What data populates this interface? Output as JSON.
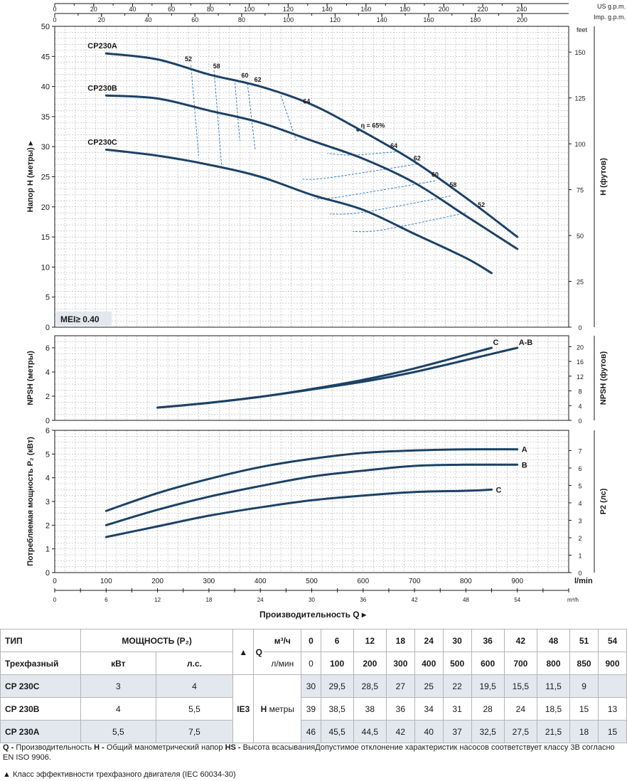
{
  "top_axes": {
    "us_gpm": {
      "label": "US g.p.m.",
      "ticks": [
        0,
        20,
        40,
        60,
        80,
        100,
        120,
        140,
        160,
        180,
        200,
        220,
        240
      ]
    },
    "imp_gpm": {
      "label": "Imp. g.p.m.",
      "ticks": [
        0,
        20,
        40,
        60,
        80,
        100,
        120,
        140,
        160,
        180,
        200
      ]
    }
  },
  "chart_data": [
    {
      "type": "line",
      "name": "head",
      "ylabel": "Напор H (метры) ▸",
      "y2label": "H (футов)",
      "y2unit": "feet",
      "xlim": [
        0,
        1000
      ],
      "ylim": [
        0,
        50
      ],
      "yticks": [
        0,
        5,
        10,
        15,
        20,
        25,
        30,
        35,
        40,
        45,
        50
      ],
      "y2ticks": [
        0,
        25,
        50,
        75,
        100,
        125,
        150
      ],
      "annotation": "MEI≥ 0.40",
      "series": [
        {
          "name": "CP230A",
          "x": [
            100,
            200,
            300,
            400,
            500,
            600,
            700,
            800,
            900
          ],
          "y": [
            45.5,
            44.5,
            42,
            40,
            37,
            32.5,
            27.5,
            21.5,
            15
          ]
        },
        {
          "name": "CP230B",
          "x": [
            100,
            200,
            300,
            400,
            500,
            600,
            700,
            800,
            900
          ],
          "y": [
            38.5,
            38,
            36,
            34,
            31,
            28,
            24,
            18.5,
            13
          ]
        },
        {
          "name": "CP230C",
          "x": [
            100,
            200,
            300,
            400,
            500,
            600,
            700,
            800,
            850
          ],
          "y": [
            29.5,
            28.5,
            27,
            25,
            22,
            19.5,
            15.5,
            11.5,
            9
          ]
        }
      ],
      "efficiency": {
        "label_eta": "η = 65%",
        "eta_point": {
          "x": 590,
          "y": 32.8
        },
        "left_labels": [
          {
            "text": "52",
            "x": 260,
            "y": 44.2
          },
          {
            "text": "58",
            "x": 315,
            "y": 43.0
          },
          {
            "text": "60",
            "x": 370,
            "y": 41.5
          },
          {
            "text": "62",
            "x": 395,
            "y": 40.8
          },
          {
            "text": "64",
            "x": 490,
            "y": 37.2
          }
        ],
        "right_labels": [
          {
            "text": "64",
            "x": 660,
            "y": 29.8
          },
          {
            "text": "62",
            "x": 705,
            "y": 27.7
          },
          {
            "text": "60",
            "x": 740,
            "y": 25.0
          },
          {
            "text": "58",
            "x": 775,
            "y": 23.3
          },
          {
            "text": "52",
            "x": 830,
            "y": 20.0
          }
        ],
        "contours": [
          {
            "label": "52",
            "left": [
              [
                265,
                43.5
              ],
              [
                280,
                28.5
              ]
            ],
            "right": [
              [
                800,
                19.0
              ],
              [
                640,
                16.2
              ],
              [
                580,
                15.9
              ]
            ]
          },
          {
            "label": "58",
            "left": [
              [
                310,
                42.7
              ],
              [
                325,
                26.5
              ]
            ],
            "right": [
              [
                770,
                21.8
              ],
              [
                600,
                19.1
              ],
              [
                535,
                18.8
              ]
            ]
          },
          {
            "label": "60",
            "left": [
              [
                350,
                41.2
              ],
              [
                360,
                31.0
              ]
            ],
            "right": [
              [
                740,
                24.3
              ],
              [
                550,
                21.6
              ],
              [
                505,
                21.4
              ]
            ]
          },
          {
            "label": "62",
            "left": [
              [
                375,
                40.5
              ],
              [
                390,
                29.5
              ]
            ],
            "right": [
              [
                705,
                27.1
              ],
              [
                530,
                24.8
              ],
              [
                480,
                24.6
              ]
            ]
          },
          {
            "label": "64",
            "left": [
              [
                440,
                38.5
              ],
              [
                470,
                31.0
              ]
            ],
            "right": [
              [
                670,
                29.2
              ],
              [
                580,
                28.6
              ],
              [
                530,
                28.9
              ]
            ]
          }
        ]
      }
    },
    {
      "type": "line",
      "name": "npsh",
      "ylabel": "NPSH (метры)",
      "y2label": "NPSH (футов)",
      "xlim": [
        0,
        1000
      ],
      "ylim": [
        0,
        7
      ],
      "yticks": [
        0,
        2,
        4,
        6
      ],
      "y2ticks": [
        0,
        4,
        8,
        12,
        16,
        20
      ],
      "series": [
        {
          "name": "C",
          "x": [
            200,
            300,
            400,
            500,
            600,
            700,
            850
          ],
          "y": [
            1.05,
            1.45,
            1.95,
            2.6,
            3.35,
            4.3,
            6.0
          ]
        },
        {
          "name": "A-B",
          "x": [
            200,
            300,
            400,
            500,
            600,
            700,
            900
          ],
          "y": [
            1.05,
            1.45,
            1.95,
            2.55,
            3.2,
            4.0,
            6.0
          ]
        }
      ]
    },
    {
      "type": "line",
      "name": "power",
      "ylabel": "Потребляемая мощность P₂ (кВт)",
      "y2label": "P2 (лс)",
      "xlabel": "Производительность Q ▸",
      "xunit1": "l/min",
      "xunit2": "m³/h",
      "xlim": [
        0,
        1000
      ],
      "ylim": [
        0,
        6
      ],
      "yticks": [
        0,
        1,
        2,
        3,
        4,
        5,
        6
      ],
      "y2ticks": [
        0,
        1,
        2,
        3,
        4,
        5,
        6,
        7
      ],
      "xticks": [
        0,
        100,
        200,
        300,
        400,
        500,
        600,
        700,
        800,
        900
      ],
      "x2ticks": [
        0,
        6,
        12,
        18,
        24,
        30,
        36,
        42,
        48,
        54
      ],
      "series": [
        {
          "name": "A",
          "x": [
            100,
            200,
            300,
            400,
            500,
            600,
            700,
            800,
            900
          ],
          "y": [
            2.6,
            3.35,
            3.95,
            4.45,
            4.8,
            5.05,
            5.15,
            5.2,
            5.2
          ]
        },
        {
          "name": "B",
          "x": [
            100,
            200,
            300,
            400,
            500,
            600,
            700,
            800,
            900
          ],
          "y": [
            2.0,
            2.65,
            3.2,
            3.65,
            4.05,
            4.3,
            4.5,
            4.55,
            4.55
          ]
        },
        {
          "name": "C",
          "x": [
            100,
            200,
            300,
            400,
            500,
            600,
            700,
            800,
            850
          ],
          "y": [
            1.5,
            1.95,
            2.4,
            2.75,
            3.05,
            3.25,
            3.4,
            3.45,
            3.5
          ]
        }
      ]
    }
  ],
  "table": {
    "header1": {
      "type": "ТИП",
      "power": "МОЩНОСТЬ (P₂)",
      "q_m3": "м³/ч",
      "q_values_m3": [
        "0",
        "6",
        "12",
        "18",
        "24",
        "30",
        "36",
        "42",
        "48",
        "51",
        "54"
      ]
    },
    "header2": {
      "phase": "Трехфазный",
      "kw": "кВт",
      "hp": "л.с.",
      "triangle": "▲",
      "q_letter": "Q",
      "q_lmin": "л/мин",
      "q_values_lmin": [
        "0",
        "100",
        "200",
        "300",
        "400",
        "500",
        "600",
        "700",
        "800",
        "850",
        "900"
      ]
    },
    "ie3": "IE3",
    "h_letter": "H",
    "h_unit": "метры",
    "rows": [
      {
        "model": "CP 230C",
        "kw": "3",
        "hp": "4",
        "h": [
          "30",
          "29,5",
          "28,5",
          "27",
          "25",
          "22",
          "19,5",
          "15,5",
          "11,5",
          "9",
          ""
        ]
      },
      {
        "model": "CP 230B",
        "kw": "4",
        "hp": "5,5",
        "h": [
          "39",
          "38,5",
          "38",
          "36",
          "34",
          "31",
          "28",
          "24",
          "18,5",
          "15",
          "13"
        ]
      },
      {
        "model": "CP 230A",
        "kw": "5,5",
        "hp": "7,5",
        "h": [
          "46",
          "45,5",
          "44,5",
          "42",
          "40",
          "37",
          "32,5",
          "27,5",
          "21,5",
          "18",
          "15"
        ]
      }
    ]
  },
  "footnotes": {
    "q_key": "Q -",
    "q_text": " Производительность   ",
    "h_key": "H -",
    "h_text": " Общий манометрический напор   ",
    "hs_key": "HS -",
    "hs_text": " Высота всасыванияДопустимое отклонение характеристик насосов соответствует классу 3В согласно",
    "line2": "EN ISO 9906.",
    "triangle_note": "▲  Класс эффективности трехфазного двигателя (IEC 60034-30)"
  },
  "colors": {
    "curve": "#1c4266",
    "dashed": "#3a7fc2",
    "grid": "#9fa3a8",
    "axis": "#1a1a1a",
    "shade": "#e2e8ee"
  }
}
